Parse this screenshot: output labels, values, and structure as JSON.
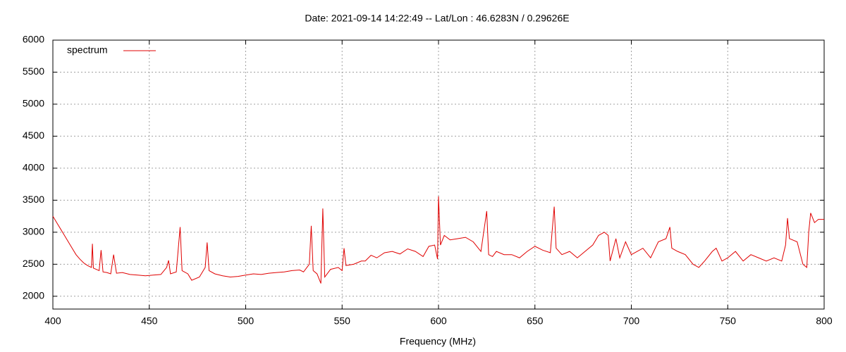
{
  "chart_data": {
    "type": "line",
    "title": "Date: 2021-09-14 14:22:49  --  Lat/Lon : 46.6283N / 0.29626E",
    "x_label": "Frequency (MHz)",
    "xlim": [
      400,
      800
    ],
    "xticks": [
      400,
      450,
      500,
      550,
      600,
      650,
      700,
      750,
      800
    ],
    "ylim": [
      1800,
      6000
    ],
    "yticks": [
      2000,
      2500,
      3000,
      3500,
      4000,
      4500,
      5000,
      5500,
      6000
    ],
    "grid": true,
    "legend": "upper left",
    "x": [
      400,
      402,
      404,
      406,
      408,
      410,
      412,
      414,
      416,
      418,
      420,
      420.5,
      421,
      424,
      425,
      426,
      428,
      430,
      431.5,
      433,
      436,
      440,
      444,
      448,
      452,
      456,
      459,
      460,
      461,
      464,
      466,
      467,
      470,
      472,
      476,
      479,
      480,
      481,
      484,
      488,
      492,
      496,
      500,
      504,
      508,
      512,
      516,
      520,
      524,
      528,
      530,
      533,
      534,
      535,
      537,
      539,
      540,
      541,
      544,
      548,
      550,
      551,
      552,
      556,
      560,
      562,
      565,
      568,
      572,
      576,
      580,
      584,
      588,
      592,
      595,
      598,
      599.5,
      600,
      601,
      603,
      606,
      610,
      614,
      618,
      622,
      625,
      626,
      628,
      630,
      634,
      638,
      642,
      646,
      650,
      654,
      658,
      660,
      661,
      664,
      668,
      672,
      676,
      680,
      683,
      686,
      688,
      689,
      692,
      694,
      697,
      700,
      703,
      706,
      710,
      714,
      718,
      720,
      721,
      724,
      728,
      732,
      735,
      738,
      742,
      744,
      747,
      750,
      754,
      758,
      762,
      766,
      770,
      774,
      778,
      780,
      781,
      782,
      786,
      789,
      791,
      792,
      793,
      795,
      797,
      800
    ],
    "series": [
      {
        "name": "spectrum",
        "color": "#e00000",
        "values": [
          3250,
          3150,
          3050,
          2950,
          2850,
          2750,
          2650,
          2580,
          2520,
          2480,
          2450,
          2820,
          2440,
          2400,
          2720,
          2380,
          2370,
          2350,
          2650,
          2360,
          2370,
          2340,
          2330,
          2320,
          2330,
          2340,
          2450,
          2560,
          2350,
          2380,
          3080,
          2400,
          2350,
          2250,
          2300,
          2450,
          2840,
          2400,
          2350,
          2320,
          2300,
          2310,
          2330,
          2350,
          2340,
          2360,
          2370,
          2380,
          2400,
          2410,
          2380,
          2500,
          3100,
          2400,
          2350,
          2200,
          3370,
          2300,
          2420,
          2450,
          2400,
          2750,
          2480,
          2500,
          2550,
          2550,
          2640,
          2600,
          2680,
          2700,
          2660,
          2740,
          2700,
          2620,
          2780,
          2800,
          2580,
          3560,
          2800,
          2950,
          2880,
          2900,
          2920,
          2850,
          2700,
          3330,
          2650,
          2620,
          2700,
          2650,
          2650,
          2600,
          2700,
          2780,
          2720,
          2680,
          3400,
          2750,
          2650,
          2700,
          2600,
          2700,
          2800,
          2950,
          3000,
          2950,
          2550,
          2900,
          2600,
          2850,
          2650,
          2700,
          2750,
          2600,
          2850,
          2900,
          3080,
          2750,
          2700,
          2650,
          2500,
          2450,
          2550,
          2700,
          2750,
          2550,
          2600,
          2700,
          2550,
          2650,
          2600,
          2550,
          2600,
          2550,
          2800,
          3220,
          2900,
          2850,
          2500,
          2450,
          3000,
          3300,
          3150,
          3200,
          3200
        ]
      }
    ]
  }
}
